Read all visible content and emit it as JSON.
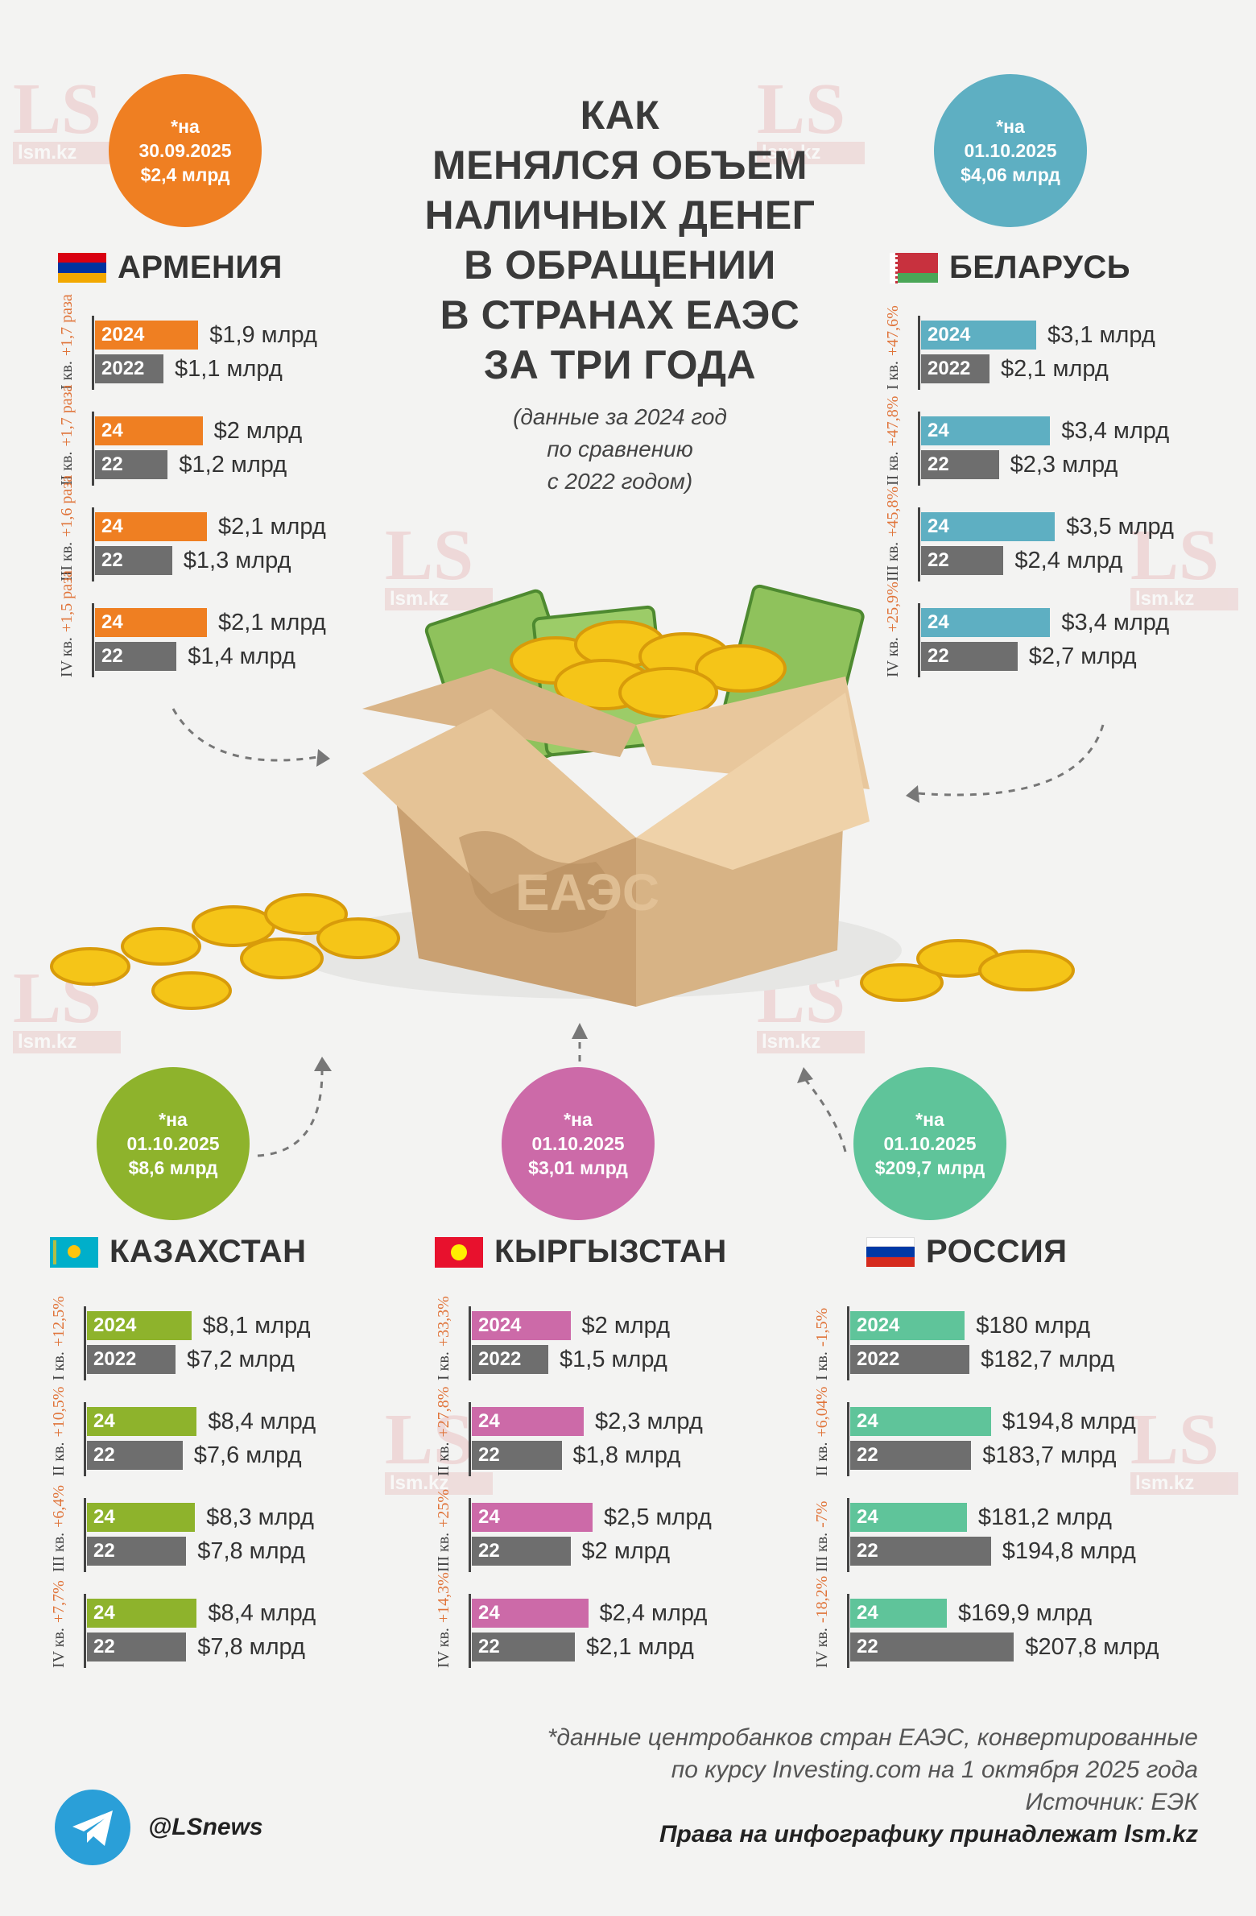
{
  "title_lines": [
    "КАК",
    "МЕНЯЛСЯ ОБЪЕМ",
    "НАЛИЧНЫХ ДЕНЕГ",
    "В ОБРАЩЕНИИ",
    "В СТРАНАХ ЕАЭС",
    "ЗА ТРИ ГОДА"
  ],
  "subtitle_lines": [
    "(данные за 2024 год",
    "по сравнению",
    "с 2022 годом)"
  ],
  "box_label": "ЕАЭС",
  "watermark": {
    "logo": "LS",
    "site": "lsm.kz"
  },
  "circles": {
    "armenia": {
      "line1": "*на",
      "line2": "30.09.2025",
      "line3": "$2,4 млрд",
      "color": "#ef7f22"
    },
    "belarus": {
      "line1": "*на",
      "line2": "01.10.2025",
      "line3": "$4,06 млрд",
      "color": "#5eafc2"
    },
    "kazakhstan": {
      "line1": "*на",
      "line2": "01.10.2025",
      "line3": "$8,6 млрд",
      "color": "#8eb32c"
    },
    "kyrgyzstan": {
      "line1": "*на",
      "line2": "01.10.2025",
      "line3": "$3,01 млрд",
      "color": "#cc6aa8"
    },
    "russia": {
      "line1": "*на",
      "line2": "01.10.2025",
      "line3": "$209,7 млрд",
      "color": "#5fc49a"
    }
  },
  "chart_data": {
    "type": "bar",
    "unit": "$ млрд",
    "countries": [
      {
        "key": "armenia",
        "name": "АРМЕНИЯ",
        "color": "#ef7f22",
        "change_color": "#e0743a",
        "quarters": [
          {
            "q": "I кв.",
            "change": "+1,7 раза",
            "v2024": 1.9,
            "v2022": 1.1,
            "l2024": "$1,9 млрд",
            "l2022": "$1,1 млрд"
          },
          {
            "q": "II кв.",
            "change": "+1,7 раза",
            "v2024": 2.0,
            "v2022": 1.2,
            "l2024": "$2 млрд",
            "l2022": "$1,2 млрд"
          },
          {
            "q": "III кв.",
            "change": "+1,6 раза",
            "v2024": 2.1,
            "v2022": 1.3,
            "l2024": "$2,1 млрд",
            "l2022": "$1,3 млрд"
          },
          {
            "q": "IV кв.",
            "change": "+1,5 раза",
            "v2024": 2.1,
            "v2022": 1.4,
            "l2024": "$2,1 млрд",
            "l2022": "$1,4 млрд"
          }
        ]
      },
      {
        "key": "belarus",
        "name": "БЕЛАРУСЬ",
        "color": "#5eafc2",
        "change_color": "#e0743a",
        "quarters": [
          {
            "q": "I кв.",
            "change": "+47,6%",
            "v2024": 3.1,
            "v2022": 2.1,
            "l2024": "$3,1 млрд",
            "l2022": "$2,1 млрд"
          },
          {
            "q": "II кв.",
            "change": "+47,8%",
            "v2024": 3.4,
            "v2022": 2.3,
            "l2024": "$3,4 млрд",
            "l2022": "$2,3 млрд"
          },
          {
            "q": "III кв.",
            "change": "+45,8%",
            "v2024": 3.5,
            "v2022": 2.4,
            "l2024": "$3,5 млрд",
            "l2022": "$2,4 млрд"
          },
          {
            "q": "IV кв.",
            "change": "+25,9%",
            "v2024": 3.4,
            "v2022": 2.7,
            "l2024": "$3,4 млрд",
            "l2022": "$2,7 млрд"
          }
        ]
      },
      {
        "key": "kazakhstan",
        "name": "КАЗАХСТАН",
        "color": "#8eb32c",
        "change_color": "#e0743a",
        "quarters": [
          {
            "q": "I кв.",
            "change": "+12,5%",
            "v2024": 8.1,
            "v2022": 7.2,
            "l2024": "$8,1 млрд",
            "l2022": "$7,2 млрд"
          },
          {
            "q": "II кв.",
            "change": "+10,5%",
            "v2024": 8.4,
            "v2022": 7.6,
            "l2024": "$8,4 млрд",
            "l2022": "$7,6 млрд"
          },
          {
            "q": "III кв.",
            "change": "+6,4%",
            "v2024": 8.3,
            "v2022": 7.8,
            "l2024": "$8,3 млрд",
            "l2022": "$7,8 млрд"
          },
          {
            "q": "IV кв.",
            "change": "+7,7%",
            "v2024": 8.4,
            "v2022": 7.8,
            "l2024": "$8,4 млрд",
            "l2022": "$7,8 млрд"
          }
        ]
      },
      {
        "key": "kyrgyzstan",
        "name": "КЫРГЫЗСТАН",
        "color": "#cc6aa8",
        "change_color": "#e0743a",
        "quarters": [
          {
            "q": "I кв.",
            "change": "+33,3%",
            "v2024": 2.0,
            "v2022": 1.5,
            "l2024": "$2 млрд",
            "l2022": "$1,5 млрд"
          },
          {
            "q": "II кв.",
            "change": "+27,8%",
            "v2024": 2.3,
            "v2022": 1.8,
            "l2024": "$2,3 млрд",
            "l2022": "$1,8 млрд"
          },
          {
            "q": "III кв.",
            "change": "+25%",
            "v2024": 2.5,
            "v2022": 2.0,
            "l2024": "$2,5 млрд",
            "l2022": "$2 млрд"
          },
          {
            "q": "IV кв.",
            "change": "+14,3%",
            "v2024": 2.4,
            "v2022": 2.1,
            "l2024": "$2,4 млрд",
            "l2022": "$2,1 млрд"
          }
        ]
      },
      {
        "key": "russia",
        "name": "РОССИЯ",
        "color": "#5fc49a",
        "change_color": "#e0743a",
        "quarters": [
          {
            "q": "I кв.",
            "change": "-1,5%",
            "v2024": 180,
            "v2022": 182.7,
            "l2024": "$180 млрд",
            "l2022": "$182,7 млрд"
          },
          {
            "q": "II кв.",
            "change": "+6,04%",
            "v2024": 194.8,
            "v2022": 183.7,
            "l2024": "$194,8 млрд",
            "l2022": "$183,7 млрд"
          },
          {
            "q": "III кв.",
            "change": "-7%",
            "v2024": 181.2,
            "v2022": 194.8,
            "l2024": "$181,2 млрд",
            "l2022": "$194,8 млрд"
          },
          {
            "q": "IV кв.",
            "change": "-18,2%",
            "v2024": 169.9,
            "v2022": 207.8,
            "l2024": "$169,9 млрд",
            "l2022": "$207,8 млрд"
          }
        ]
      }
    ],
    "year_labels": {
      "first_top": "2024",
      "first_bottom": "2022",
      "short_top": "24",
      "short_bottom": "22"
    }
  },
  "footnote_lines": [
    "*данные центробанков стран ЕАЭС, конвертированные",
    "по курсу Investing.com на 1 октября 2025 года",
    "Источник: ЕЭК"
  ],
  "rights": "Права на инфографику принадлежат lsm.kz",
  "telegram": {
    "handle": "@LSnews",
    "icon": "telegram-icon"
  }
}
